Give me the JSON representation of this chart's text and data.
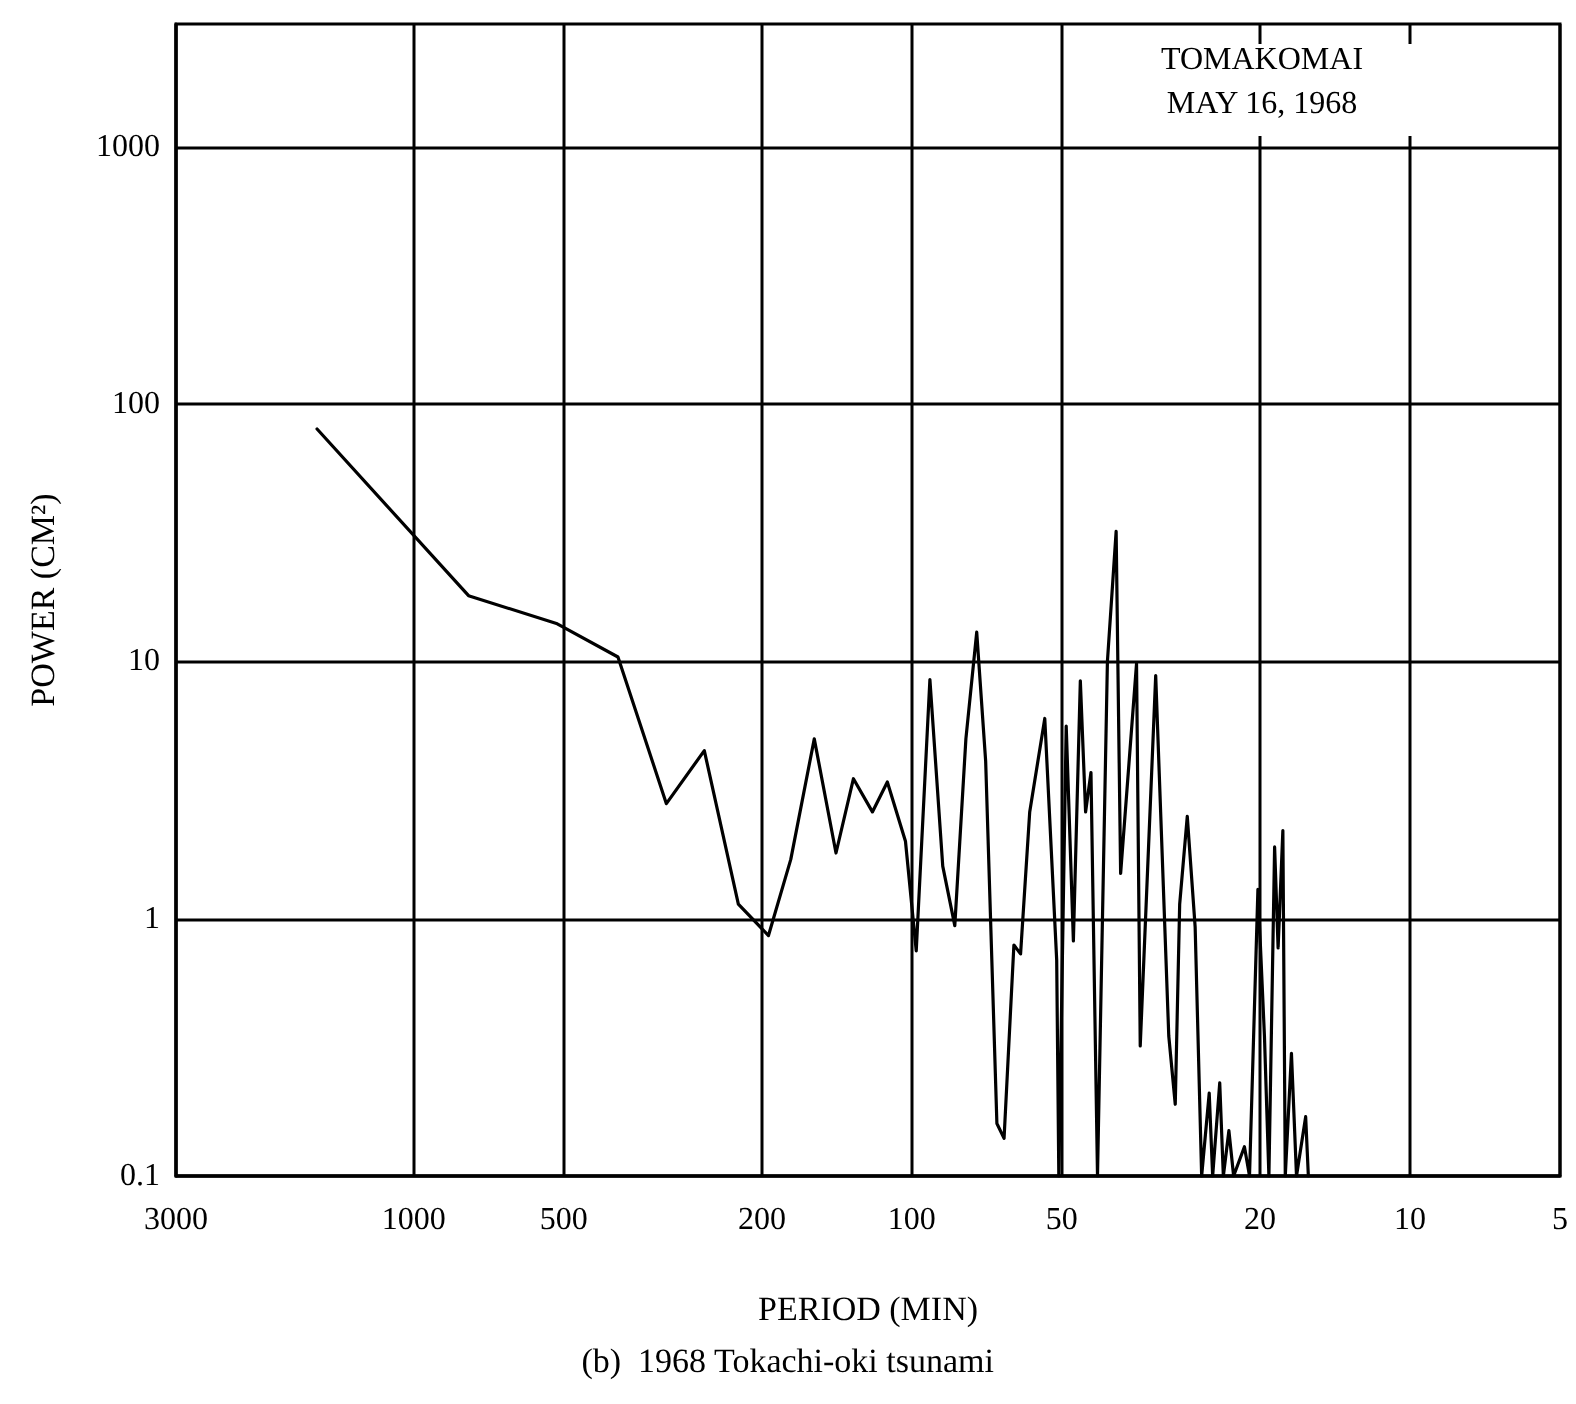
{
  "chart_data": {
    "type": "line",
    "xlabel": "PERIOD (MIN)",
    "ylabel": "POWER (CM²)",
    "annotations": [
      "TOMAKOMAI",
      "MAY 16, 1968",
      "(b)  1968 Tokachi-oki tsunami"
    ],
    "log": "xy",
    "grid": true,
    "marker": "none",
    "line_style": "solid",
    "legend": false,
    "xlim": [
      3000,
      5
    ],
    "xticks": [
      3000,
      1000,
      500,
      200,
      100,
      50,
      20,
      10,
      5
    ],
    "ylim": [
      0.1,
      3000
    ],
    "yticks": [
      0.1,
      1,
      10,
      100,
      1000
    ],
    "series": [
      {
        "color": "#000000",
        "x": [
          1563,
          776,
          515,
          389,
          311,
          261,
          223,
          194,
          175,
          157,
          142,
          131,
          120,
          112,
          103,
          98,
          92,
          86.7,
          82,
          77.9,
          74.1,
          71.1,
          67.5,
          65.3,
          62.4,
          60.5,
          58,
          54.1,
          51.2,
          50.7,
          49,
          47.4,
          45.9,
          44.8,
          43.7,
          42.4,
          40.5,
          38.9,
          38.1,
          35.4,
          34.8,
          32.4,
          30.5,
          29.6,
          29,
          28,
          27,
          26.2,
          25.3,
          24.9,
          24.1,
          23.7,
          23.1,
          22.6,
          21.5,
          21,
          20.2,
          19.6,
          19.2,
          18.7,
          18.4,
          18,
          17.8,
          17.3,
          16.9,
          16.2,
          16
        ],
        "values": [
          80,
          18,
          14,
          10.4,
          2.8,
          4.5,
          1.14,
          0.86,
          1.7,
          5,
          1.8,
          3.5,
          2.6,
          3.4,
          2,
          0.75,
          8.5,
          1.6,
          0.94,
          5,
          13,
          4.1,
          0.16,
          0.14,
          0.79,
          0.73,
          2.6,
          6,
          0.69,
          0.1,
          5.6,
          0.82,
          8.4,
          2.6,
          3.7,
          0.1,
          10,
          32,
          1.5,
          9.8,
          0.32,
          8.8,
          0.35,
          0.19,
          1.14,
          2.5,
          0.93,
          0.1,
          0.21,
          0.1,
          0.23,
          0.1,
          0.15,
          0.1,
          0.13,
          0.1,
          1.3,
          0.35,
          0.1,
          1.9,
          0.77,
          2.2,
          0.1,
          0.3,
          0.1,
          0.17,
          0.1
        ]
      }
    ]
  }
}
